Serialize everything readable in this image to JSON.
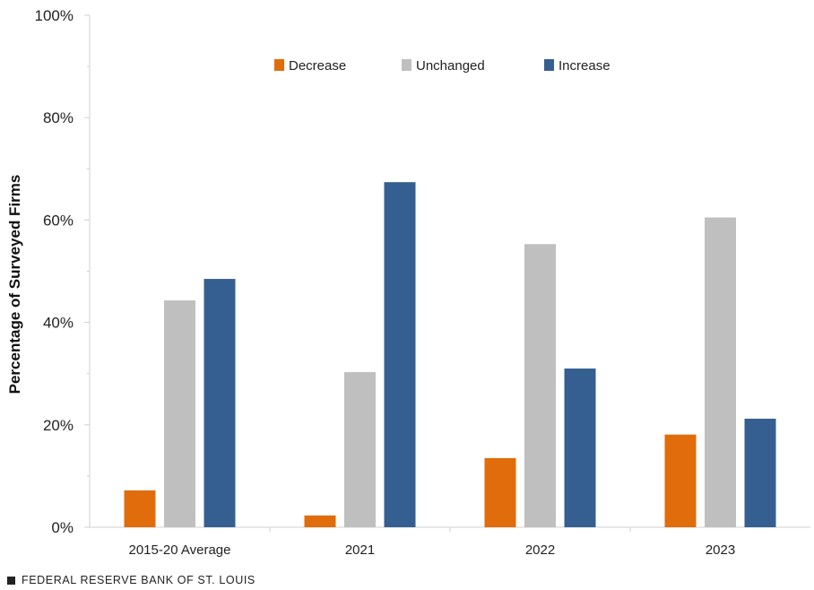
{
  "chart_data": {
    "type": "bar",
    "categories": [
      "2015-20 Average",
      "2021",
      "2022",
      "2023"
    ],
    "series": [
      {
        "name": "Decrease",
        "color": "#E06C0B",
        "values": [
          7.2,
          2.3,
          13.5,
          18.1
        ]
      },
      {
        "name": "Unchanged",
        "color": "#BFBFBF",
        "values": [
          44.3,
          30.3,
          55.3,
          60.5
        ]
      },
      {
        "name": "Increase",
        "color": "#365F91",
        "values": [
          48.5,
          67.4,
          31.0,
          21.2
        ]
      }
    ],
    "ylabel": "Percentage of Surveyed Firms",
    "ylim": [
      0,
      100
    ],
    "yticks": [
      0,
      20,
      40,
      60,
      80,
      100
    ],
    "ytick_labels": [
      "0%",
      "20%",
      "40%",
      "60%",
      "80%",
      "100%"
    ],
    "legend_position": "top-center",
    "grid": false
  },
  "source": "FEDERAL RESERVE BANK OF ST. LOUIS"
}
